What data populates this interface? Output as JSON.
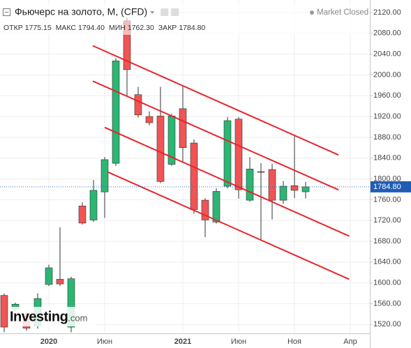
{
  "chart_data": {
    "type": "candlestick",
    "title": "Фьючерс на золото, M, (CFD)",
    "status": "Market Closed",
    "ohlc_header": [
      {
        "label": "ОТКР",
        "value": "1775.15"
      },
      {
        "label": "МАКС",
        "value": "1794.40"
      },
      {
        "label": "МИН",
        "value": "1762.30"
      },
      {
        "label": "ЗАКР",
        "value": "1784.80"
      }
    ],
    "last_price_label": "1784.80",
    "logo": "Investing",
    "logo_suffix": ".com",
    "categories": [
      null,
      null,
      null,
      null,
      "2020",
      null,
      null,
      null,
      null,
      "Июн",
      null,
      null,
      null,
      null,
      null,
      null,
      "2021",
      null,
      null,
      null,
      null,
      "Июн",
      null,
      null,
      null,
      null,
      "Ноя",
      null,
      null,
      null,
      null,
      "Апр"
    ],
    "open": [
      1576,
      1550,
      1541,
      1517,
      1597,
      1607,
      1515,
      1748,
      1721,
      1775,
      1830,
      2104,
      1962,
      1920,
      1921,
      1828,
      1935,
      1869,
      1759,
      1717,
      1786,
      1915,
      1759,
      1814,
      1818,
      1759,
      1787,
      1775.15,
      null,
      null,
      null,
      null
    ],
    "high": [
      1580,
      1562,
      1545,
      1580,
      1635,
      1707,
      1612,
      1755,
      1798,
      1842,
      2032,
      2110,
      1977,
      1930,
      1977,
      1925,
      1980,
      1876,
      1763,
      1782,
      1919,
      1919,
      1842,
      1830,
      1829,
      1796,
      1882,
      1794.4,
      null,
      null,
      null,
      null
    ],
    "low": [
      1505,
      1545,
      1508,
      1512,
      1594,
      1594,
      1505,
      1712,
      1717,
      1725,
      1825,
      1960,
      1918,
      1903,
      1792,
      1825,
      1833,
      1733,
      1688,
      1714,
      1782,
      1762,
      1756,
      1684,
      1722,
      1752,
      1763,
      1762.3,
      null,
      null,
      null,
      null
    ],
    "close": [
      1515,
      1559,
      1513,
      1570,
      1629,
      1598,
      1608,
      1715,
      1778,
      1837,
      2027,
      2010,
      1923,
      1908,
      1795,
      1921,
      1860,
      1741,
      1721,
      1776,
      1912,
      1779,
      1819,
      1813,
      1759,
      1786,
      1778,
      1784.8,
      null,
      null,
      null,
      null
    ],
    "up_color": "#2bb673",
    "down_color": "#f05454",
    "trendlines": [
      {
        "x": [
          7.94,
          29.94
        ],
        "y": [
          2056,
          1846
        ]
      },
      {
        "x": [
          7.94,
          29.94
        ],
        "y": [
          1988,
          1779
        ]
      },
      {
        "x": [
          9,
          30.9
        ],
        "y": [
          1899,
          1690
        ]
      },
      {
        "x": [
          9.3,
          30.9
        ],
        "y": [
          1813,
          1607
        ]
      }
    ],
    "trendline_color": "#e8242b",
    "ylim": [
      1503,
      2144
    ],
    "yticks": [
      {
        "value": 1520,
        "label": "1520.00"
      },
      {
        "value": 1560,
        "label": "1560.00"
      },
      {
        "value": 1600,
        "label": "1600.00"
      },
      {
        "value": 1640,
        "label": "1640.00"
      },
      {
        "value": 1680,
        "label": "1680.00"
      },
      {
        "value": 1720,
        "label": "1720.00"
      },
      {
        "value": 1760,
        "label": "1760.00"
      },
      {
        "value": 1800,
        "label": "1800.00"
      },
      {
        "value": 1840,
        "label": "1840.00"
      },
      {
        "value": 1880,
        "label": "1880.00"
      },
      {
        "value": 1920,
        "label": "1920.00"
      },
      {
        "value": 1960,
        "label": "1960.00"
      },
      {
        "value": 2000,
        "label": "2000.00"
      },
      {
        "value": 2040,
        "label": "2040.00"
      },
      {
        "value": 2080,
        "label": "2080.00"
      },
      {
        "value": 2120,
        "label": "2120.00"
      }
    ],
    "grid": true
  }
}
